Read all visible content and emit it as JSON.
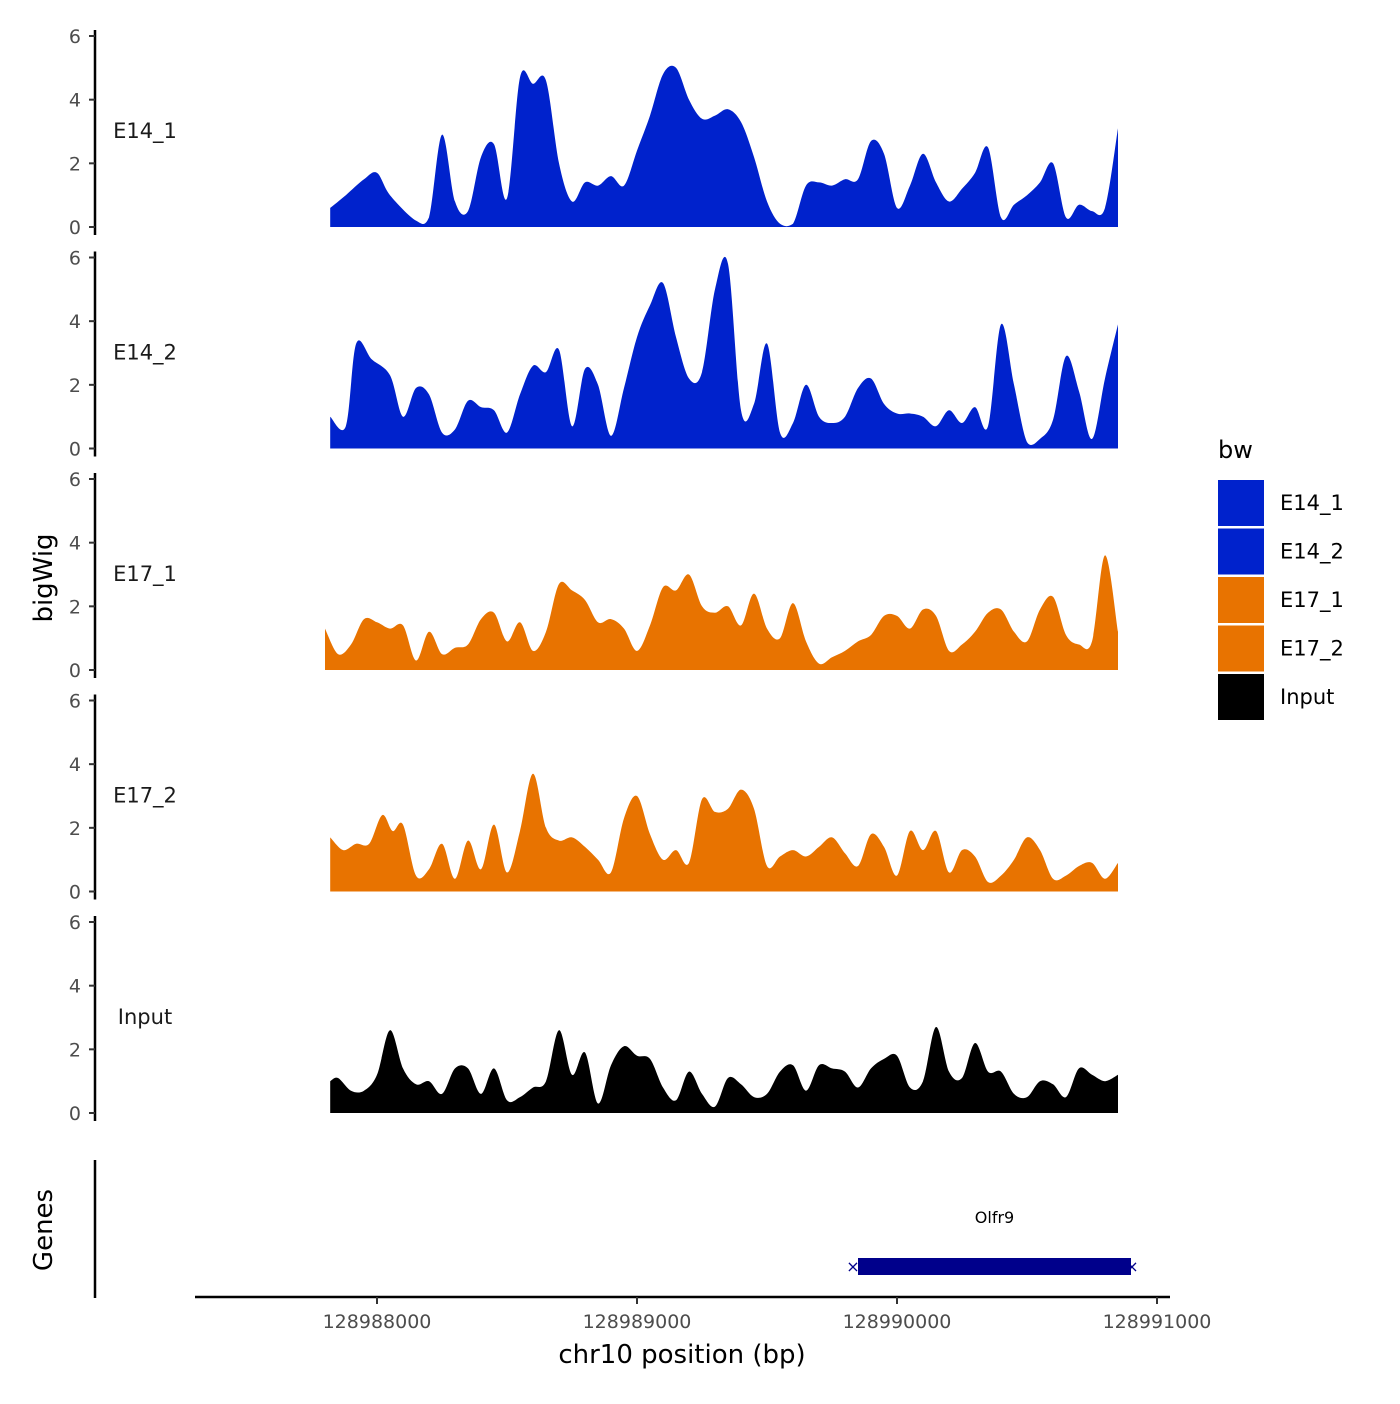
{
  "chart_data": {
    "type": "area",
    "chromosome": "chr10",
    "xlabel": "chr10 position (bp)",
    "ylabel": "bigWig",
    "genes_label": "Genes",
    "xlim": [
      128987300,
      128991050
    ],
    "x_ticks": [
      128988000,
      128989000,
      128990000,
      128991000
    ],
    "x_tick_labels": [
      "128988000",
      "128989000",
      "128990000",
      "128991000"
    ],
    "ylim": [
      0,
      6
    ],
    "y_ticks": [
      0,
      2,
      4,
      6
    ],
    "y_tick_labels": [
      "0",
      "2",
      "4",
      "6"
    ],
    "legend": {
      "title": "bw",
      "entries": [
        {
          "label": "E14_1",
          "color": "#0022CC"
        },
        {
          "label": "E14_2",
          "color": "#0022CC"
        },
        {
          "label": "E17_1",
          "color": "#E87300"
        },
        {
          "label": "E17_2",
          "color": "#E87300"
        },
        {
          "label": "Input",
          "color": "#000000"
        }
      ]
    },
    "series": [
      {
        "name": "E14_1",
        "color": "#0022CC",
        "x": [
          128987820,
          128987880,
          128987950,
          128988000,
          128988050,
          128988150,
          128988200,
          128988250,
          128988300,
          128988350,
          128988400,
          128988450,
          128988500,
          128988550,
          128988600,
          128988650,
          128988700,
          128988750,
          128988800,
          128988850,
          128988900,
          128988950,
          128989000,
          128989050,
          128989100,
          128989150,
          128989200,
          128989250,
          128989300,
          128989350,
          128989400,
          128989450,
          128989500,
          128989550,
          128989600,
          128989650,
          128989700,
          128989750,
          128989800,
          128989850,
          128989900,
          128989950,
          128990000,
          128990050,
          128990100,
          128990150,
          128990200,
          128990250,
          128990300,
          128990350,
          128990400,
          128990450,
          128990500,
          128990550,
          128990600,
          128990650,
          128990700,
          128990750,
          128990800,
          128990850
        ],
        "y": [
          0.6,
          1.0,
          1.5,
          1.7,
          1.0,
          0.2,
          0.3,
          2.9,
          0.8,
          0.5,
          2.2,
          2.6,
          0.9,
          4.7,
          4.5,
          4.6,
          2.0,
          0.8,
          1.4,
          1.3,
          1.6,
          1.3,
          2.4,
          3.5,
          4.8,
          5.0,
          4.0,
          3.4,
          3.5,
          3.7,
          3.3,
          2.2,
          0.8,
          0.1,
          0.1,
          1.3,
          1.4,
          1.3,
          1.5,
          1.5,
          2.7,
          2.3,
          0.6,
          1.3,
          2.3,
          1.4,
          0.8,
          1.2,
          1.7,
          2.5,
          0.3,
          0.7,
          1.0,
          1.4,
          2.0,
          0.3,
          0.7,
          0.5,
          0.6,
          3.1
        ]
      },
      {
        "name": "E14_2",
        "color": "#0022CC",
        "x": [
          128987820,
          128987880,
          128987920,
          128987980,
          128988050,
          128988100,
          128988150,
          128988200,
          128988250,
          128988300,
          128988350,
          128988400,
          128988450,
          128988500,
          128988550,
          128988600,
          128988650,
          128988700,
          128988750,
          128988800,
          128988850,
          128988900,
          128988950,
          128989000,
          128989050,
          128989100,
          128989150,
          128989200,
          128989250,
          128989300,
          128989350,
          128989400,
          128989450,
          128989500,
          128989550,
          128989600,
          128989650,
          128989700,
          128989750,
          128989800,
          128989850,
          128989900,
          128989950,
          128990000,
          128990050,
          128990100,
          128990150,
          128990200,
          128990250,
          128990300,
          128990350,
          128990400,
          128990450,
          128990500,
          128990550,
          128990600,
          128990650,
          128990700,
          128990750,
          128990800,
          128990850
        ],
        "y": [
          1.0,
          0.7,
          3.3,
          2.8,
          2.3,
          1.0,
          1.9,
          1.7,
          0.5,
          0.6,
          1.5,
          1.3,
          1.2,
          0.5,
          1.7,
          2.6,
          2.4,
          3.1,
          0.7,
          2.5,
          2.0,
          0.4,
          1.9,
          3.5,
          4.5,
          5.2,
          3.5,
          2.2,
          2.4,
          5.0,
          5.8,
          1.2,
          1.4,
          3.3,
          0.5,
          0.8,
          2.0,
          1.0,
          0.8,
          1.0,
          1.9,
          2.2,
          1.4,
          1.1,
          1.1,
          1.0,
          0.7,
          1.2,
          0.8,
          1.3,
          0.7,
          3.9,
          2.0,
          0.2,
          0.3,
          0.9,
          2.9,
          1.8,
          0.3,
          2.2,
          3.9
        ]
      },
      {
        "name": "E17_1",
        "color": "#E87300",
        "x": [
          128987800,
          128987850,
          128987900,
          128987950,
          128988000,
          128988050,
          128988100,
          128988150,
          128988200,
          128988250,
          128988300,
          128988350,
          128988400,
          128988450,
          128988500,
          128988550,
          128988600,
          128988650,
          128988700,
          128988750,
          128988800,
          128988850,
          128988900,
          128988950,
          128989000,
          128989050,
          128989100,
          128989150,
          128989200,
          128989250,
          128989300,
          128989350,
          128989400,
          128989450,
          128989500,
          128989550,
          128989600,
          128989650,
          128989700,
          128989750,
          128989800,
          128989850,
          128989900,
          128989950,
          128990000,
          128990050,
          128990100,
          128990150,
          128990200,
          128990250,
          128990300,
          128990350,
          128990400,
          128990450,
          128990500,
          128990550,
          128990600,
          128990650,
          128990700,
          128990750,
          128990800,
          128990850
        ],
        "y": [
          1.3,
          0.5,
          0.8,
          1.6,
          1.5,
          1.3,
          1.4,
          0.3,
          1.2,
          0.5,
          0.7,
          0.8,
          1.6,
          1.8,
          0.9,
          1.5,
          0.6,
          1.2,
          2.7,
          2.5,
          2.2,
          1.5,
          1.6,
          1.3,
          0.6,
          1.4,
          2.6,
          2.5,
          3.0,
          2.0,
          1.8,
          2.0,
          1.4,
          2.4,
          1.3,
          1.0,
          2.1,
          0.9,
          0.2,
          0.4,
          0.6,
          0.9,
          1.1,
          1.7,
          1.7,
          1.3,
          1.9,
          1.7,
          0.6,
          0.8,
          1.2,
          1.8,
          1.9,
          1.2,
          0.9,
          1.9,
          2.3,
          1.1,
          0.8,
          0.9,
          3.6,
          1.2
        ]
      },
      {
        "name": "E17_2",
        "color": "#E87300",
        "x": [
          128987820,
          128987870,
          128987920,
          128987970,
          128988020,
          128988060,
          128988100,
          128988150,
          128988200,
          128988250,
          128988300,
          128988350,
          128988400,
          128988450,
          128988500,
          128988550,
          128988600,
          128988650,
          128988700,
          128988750,
          128988800,
          128988850,
          128988900,
          128988950,
          128989000,
          128989050,
          128989100,
          128989150,
          128989200,
          128989250,
          128989300,
          128989350,
          128989400,
          128989450,
          128989500,
          128989550,
          128989600,
          128989650,
          128989700,
          128989750,
          128989800,
          128989850,
          128989900,
          128989950,
          128990000,
          128990050,
          128990100,
          128990150,
          128990200,
          128990250,
          128990300,
          128990350,
          128990400,
          128990450,
          128990500,
          128990550,
          128990600,
          128990650,
          128990700,
          128990750,
          128990800,
          128990850
        ],
        "y": [
          1.7,
          1.3,
          1.5,
          1.5,
          2.4,
          1.9,
          2.1,
          0.5,
          0.7,
          1.5,
          0.4,
          1.6,
          0.7,
          2.1,
          0.6,
          1.9,
          3.7,
          2.0,
          1.6,
          1.7,
          1.4,
          1.0,
          0.6,
          2.3,
          3.0,
          1.8,
          1.0,
          1.3,
          0.9,
          2.9,
          2.5,
          2.6,
          3.2,
          2.6,
          0.8,
          1.1,
          1.3,
          1.1,
          1.4,
          1.7,
          1.2,
          0.8,
          1.8,
          1.4,
          0.5,
          1.9,
          1.3,
          1.9,
          0.6,
          1.3,
          1.1,
          0.3,
          0.5,
          1.0,
          1.7,
          1.3,
          0.4,
          0.5,
          0.8,
          0.9,
          0.4,
          0.9
        ]
      },
      {
        "name": "Input",
        "color": "#000000",
        "x": [
          128987820,
          128987850,
          128987900,
          128987950,
          128988000,
          128988050,
          128988100,
          128988150,
          128988200,
          128988250,
          128988300,
          128988350,
          128988400,
          128988450,
          128988500,
          128988550,
          128988600,
          128988650,
          128988700,
          128988750,
          128988800,
          128988850,
          128988900,
          128988950,
          128989000,
          128989050,
          128989100,
          128989150,
          128989200,
          128989250,
          128989300,
          128989350,
          128989400,
          128989450,
          128989500,
          128989550,
          128989600,
          128989650,
          128989700,
          128989750,
          128989800,
          128989850,
          128989900,
          128989950,
          128990000,
          128990050,
          128990100,
          128990150,
          128990200,
          128990250,
          128990300,
          128990350,
          128990400,
          128990450,
          128990500,
          128990550,
          128990600,
          128990650,
          128990700,
          128990750,
          128990800,
          128990850
        ],
        "y": [
          1.0,
          1.1,
          0.7,
          0.7,
          1.2,
          2.6,
          1.4,
          0.9,
          1.0,
          0.6,
          1.4,
          1.4,
          0.6,
          1.4,
          0.4,
          0.5,
          0.8,
          1.0,
          2.6,
          1.2,
          1.9,
          0.3,
          1.5,
          2.1,
          1.8,
          1.7,
          0.8,
          0.4,
          1.3,
          0.6,
          0.2,
          1.1,
          0.9,
          0.5,
          0.6,
          1.3,
          1.5,
          0.7,
          1.5,
          1.4,
          1.3,
          0.8,
          1.4,
          1.7,
          1.8,
          0.8,
          1.0,
          2.7,
          1.3,
          1.1,
          2.2,
          1.3,
          1.3,
          0.6,
          0.5,
          1.0,
          0.9,
          0.5,
          1.4,
          1.2,
          1.0,
          1.2
        ]
      }
    ],
    "genes": [
      {
        "name": "Olfr9",
        "start": 128989850,
        "end": 128990900,
        "color": "#00008B"
      }
    ]
  }
}
